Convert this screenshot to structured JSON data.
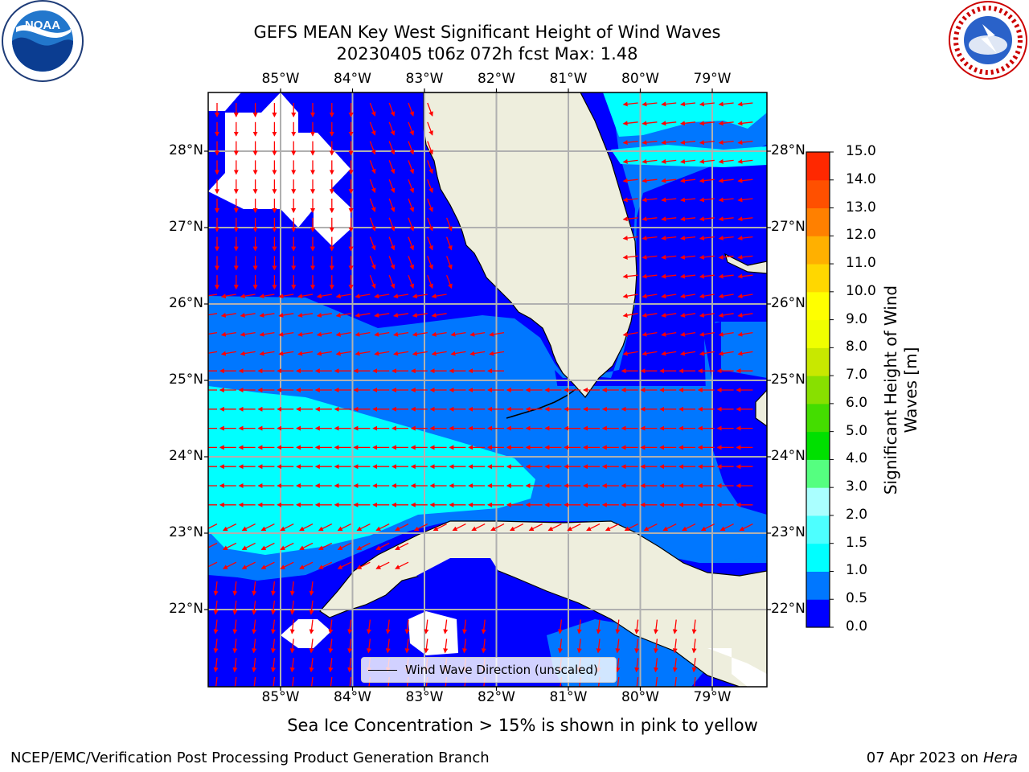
{
  "title": {
    "line1": "GEFS MEAN Key West Significant Height of Wind Waves",
    "line2": "20230405 t06z 072h fcst   Max: 1.48"
  },
  "logos": {
    "left": {
      "icon": "noaa-logo",
      "text": "NOAA"
    },
    "right": {
      "icon": "nws-logo",
      "ring_text": "NATIONAL WEATHER SERVICE"
    }
  },
  "map": {
    "longitude_labels": [
      "85°W",
      "84°W",
      "83°W",
      "82°W",
      "81°W",
      "80°W",
      "79°W"
    ],
    "latitude_labels": [
      "28°N",
      "27°N",
      "26°N",
      "25°N",
      "24°N",
      "23°N",
      "22°N"
    ],
    "longitudes": [
      -85,
      -84,
      -83,
      -82,
      -81,
      -80,
      -79
    ],
    "latitudes": [
      28,
      27,
      26,
      25,
      24,
      23,
      22
    ],
    "legend_label": "Wind Wave Direction (unscaled)",
    "arrow_color": "#ff0000",
    "land_color": "#eeeedd",
    "grid_color": "#b0b0b0"
  },
  "colorbar": {
    "label": "Significant Height of Wind Waves [m]",
    "label_line1": "Significant Height of Wind",
    "label_line2": "Waves [m]",
    "ticks": [
      "0.0",
      "0.5",
      "1.0",
      "1.5",
      "2.0",
      "3.0",
      "4.0",
      "5.0",
      "6.0",
      "7.0",
      "8.0",
      "9.0",
      "10.0",
      "11.0",
      "12.0",
      "13.0",
      "14.0",
      "15.0"
    ],
    "levels": [
      0,
      0.5,
      1.0,
      1.5,
      2.0,
      3.0,
      4.0,
      5.0,
      6.0,
      7.0,
      8.0,
      9.0,
      10.0,
      11.0,
      12.0,
      13.0,
      14.0,
      15.0
    ],
    "colors": [
      "#0000ff",
      "#0077ff",
      "#00ffff",
      "#4dffff",
      "#aaffff",
      "#55ff80",
      "#00e000",
      "#44dd00",
      "#88e000",
      "#c8e800",
      "#f0ff00",
      "#ffff00",
      "#ffd700",
      "#ffb000",
      "#ff8000",
      "#ff5000",
      "#ff2800",
      "#ff0000"
    ]
  },
  "caption": "Sea Ice Concentration > 15% is shown in pink to yellow",
  "footer": {
    "left": "NCEP/EMC/Verification Post Processing Product Generation Branch",
    "right_date": "07 Apr 2023 on ",
    "right_host": "Hera"
  }
}
